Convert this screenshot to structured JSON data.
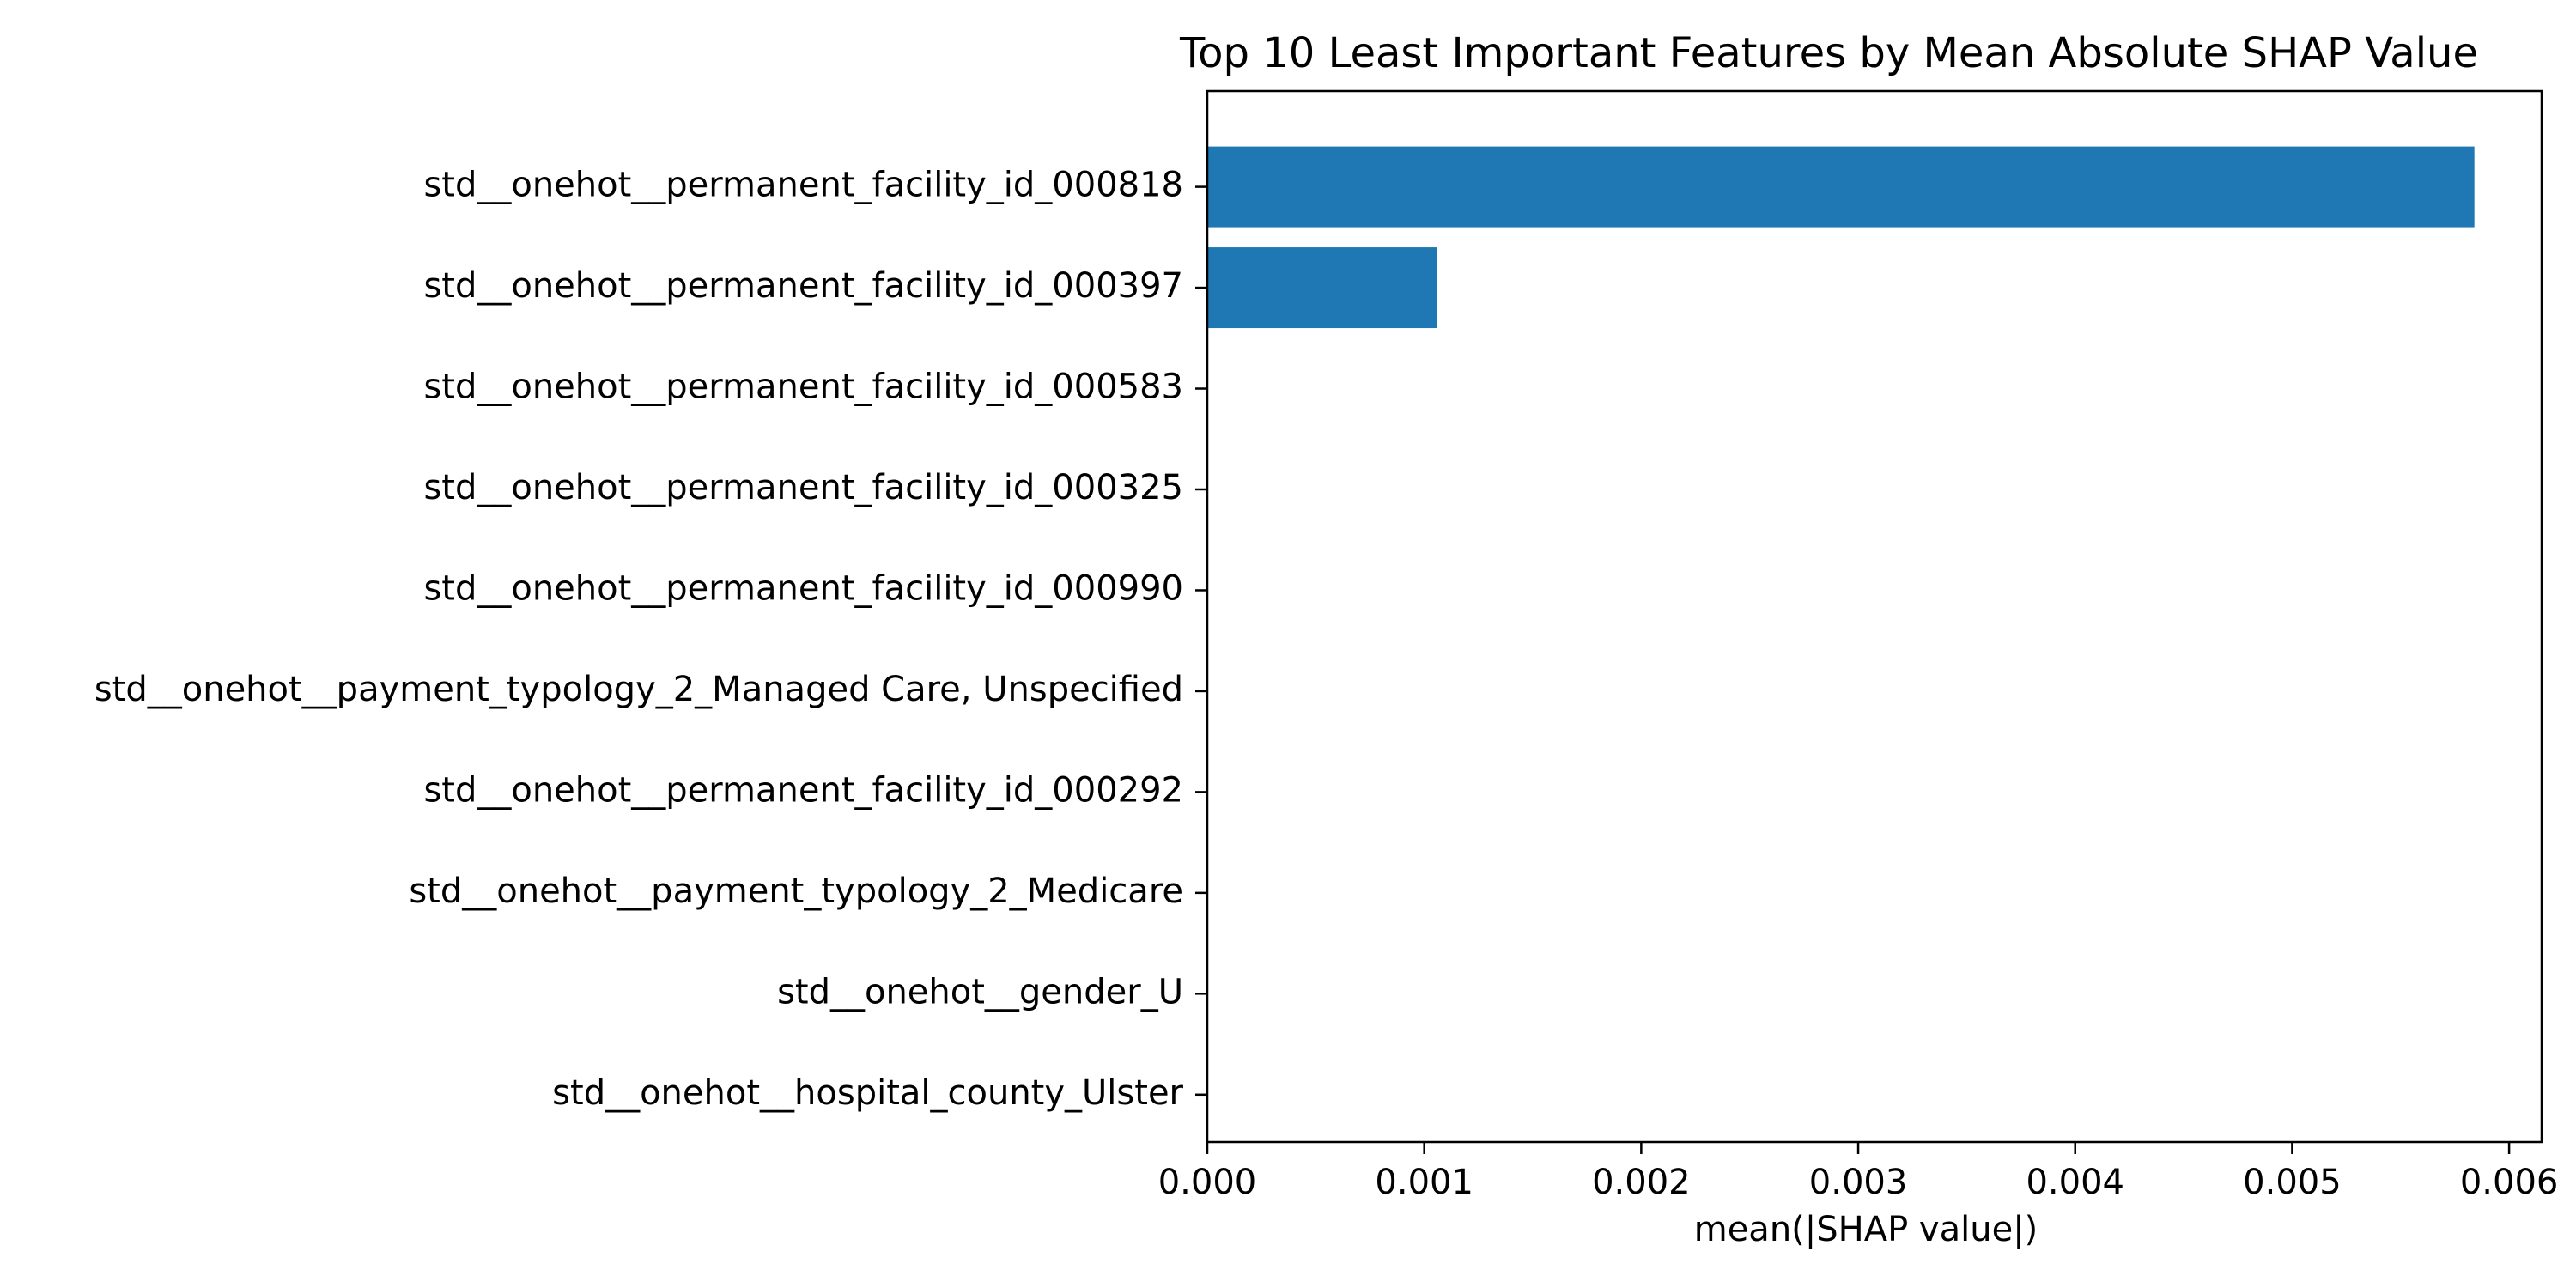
{
  "chart_data": {
    "type": "bar",
    "orientation": "horizontal",
    "title": "Top 10 Least Important Features by Mean Absolute SHAP Value",
    "xlabel": "mean(|SHAP value|)",
    "ylabel": "",
    "xlim": [
      0,
      0.00615
    ],
    "x_ticks": [
      0.0,
      0.001,
      0.002,
      0.003,
      0.004,
      0.005,
      0.006
    ],
    "x_tick_labels": [
      "0.000",
      "0.001",
      "0.002",
      "0.003",
      "0.004",
      "0.005",
      "0.006"
    ],
    "categories": [
      "std__onehot__permanent_facility_id_000818",
      "std__onehot__permanent_facility_id_000397",
      "std__onehot__permanent_facility_id_000583",
      "std__onehot__permanent_facility_id_000325",
      "std__onehot__permanent_facility_id_000990",
      "std__onehot__payment_typology_2_Managed Care, Unspecified",
      "std__onehot__permanent_facility_id_000292",
      "std__onehot__payment_typology_2_Medicare",
      "std__onehot__gender_U",
      "std__onehot__hospital_county_Ulster"
    ],
    "values": [
      0.00584,
      0.00106,
      0,
      0,
      0,
      0,
      0,
      0,
      0,
      0
    ],
    "bar_color": "#1f77b4",
    "grid": false,
    "legend": false
  }
}
